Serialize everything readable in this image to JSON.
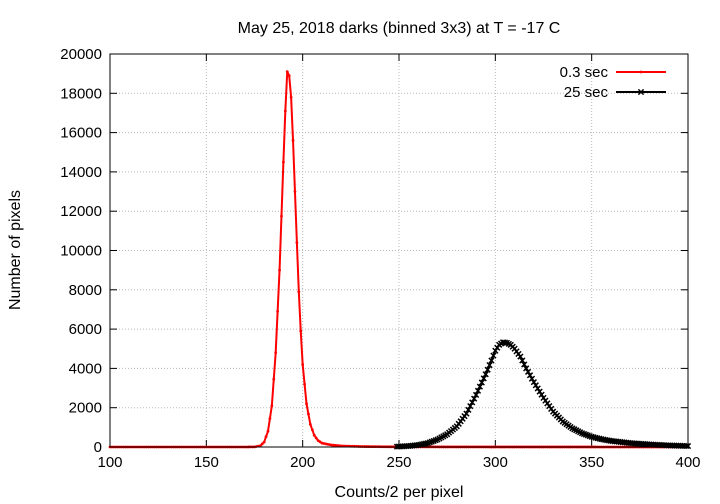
{
  "chart_data": {
    "type": "line",
    "title": "May 25, 2018 darks (binned 3x3) at T = -17 C",
    "xlabel": "Counts/2 per pixel",
    "ylabel": "Number of pixels",
    "xlim": [
      100,
      400
    ],
    "ylim": [
      0,
      20000
    ],
    "xticks": [
      100,
      150,
      200,
      250,
      300,
      350,
      400
    ],
    "yticks": [
      0,
      2000,
      4000,
      6000,
      8000,
      10000,
      12000,
      14000,
      16000,
      18000,
      20000
    ],
    "grid": true,
    "legend_position": "top-right",
    "series": [
      {
        "name": "0.3 sec",
        "color": "#ff0000",
        "marker": "dot",
        "points": [
          [
            100,
            0
          ],
          [
            150,
            0
          ],
          [
            170,
            0
          ],
          [
            175,
            8
          ],
          [
            178,
            60
          ],
          [
            180,
            250
          ],
          [
            182,
            800
          ],
          [
            184,
            2100
          ],
          [
            186,
            4800
          ],
          [
            188,
            9000
          ],
          [
            190,
            14500
          ],
          [
            191,
            17100
          ],
          [
            192,
            19100
          ],
          [
            193,
            18900
          ],
          [
            194,
            17800
          ],
          [
            195,
            15600
          ],
          [
            196,
            13000
          ],
          [
            197,
            10400
          ],
          [
            198,
            7900
          ],
          [
            199,
            5900
          ],
          [
            200,
            4200
          ],
          [
            202,
            2200
          ],
          [
            204,
            1150
          ],
          [
            206,
            600
          ],
          [
            208,
            330
          ],
          [
            210,
            200
          ],
          [
            215,
            100
          ],
          [
            220,
            55
          ],
          [
            230,
            25
          ],
          [
            245,
            10
          ],
          [
            260,
            5
          ],
          [
            300,
            3
          ],
          [
            350,
            2
          ],
          [
            400,
            0
          ]
        ]
      },
      {
        "name": "25 sec",
        "color": "#000000",
        "marker": "cross",
        "points": [
          [
            249,
            20
          ],
          [
            255,
            50
          ],
          [
            260,
            100
          ],
          [
            265,
            200
          ],
          [
            270,
            380
          ],
          [
            275,
            650
          ],
          [
            280,
            1050
          ],
          [
            285,
            1700
          ],
          [
            290,
            2650
          ],
          [
            295,
            3700
          ],
          [
            298,
            4400
          ],
          [
            300,
            4900
          ],
          [
            302,
            5200
          ],
          [
            304,
            5330
          ],
          [
            306,
            5300
          ],
          [
            308,
            5200
          ],
          [
            310,
            5000
          ],
          [
            313,
            4600
          ],
          [
            316,
            4000
          ],
          [
            320,
            3300
          ],
          [
            325,
            2500
          ],
          [
            330,
            1800
          ],
          [
            335,
            1300
          ],
          [
            340,
            950
          ],
          [
            345,
            700
          ],
          [
            350,
            520
          ],
          [
            355,
            400
          ],
          [
            360,
            310
          ],
          [
            370,
            200
          ],
          [
            380,
            130
          ],
          [
            390,
            80
          ],
          [
            400,
            50
          ]
        ]
      }
    ]
  }
}
